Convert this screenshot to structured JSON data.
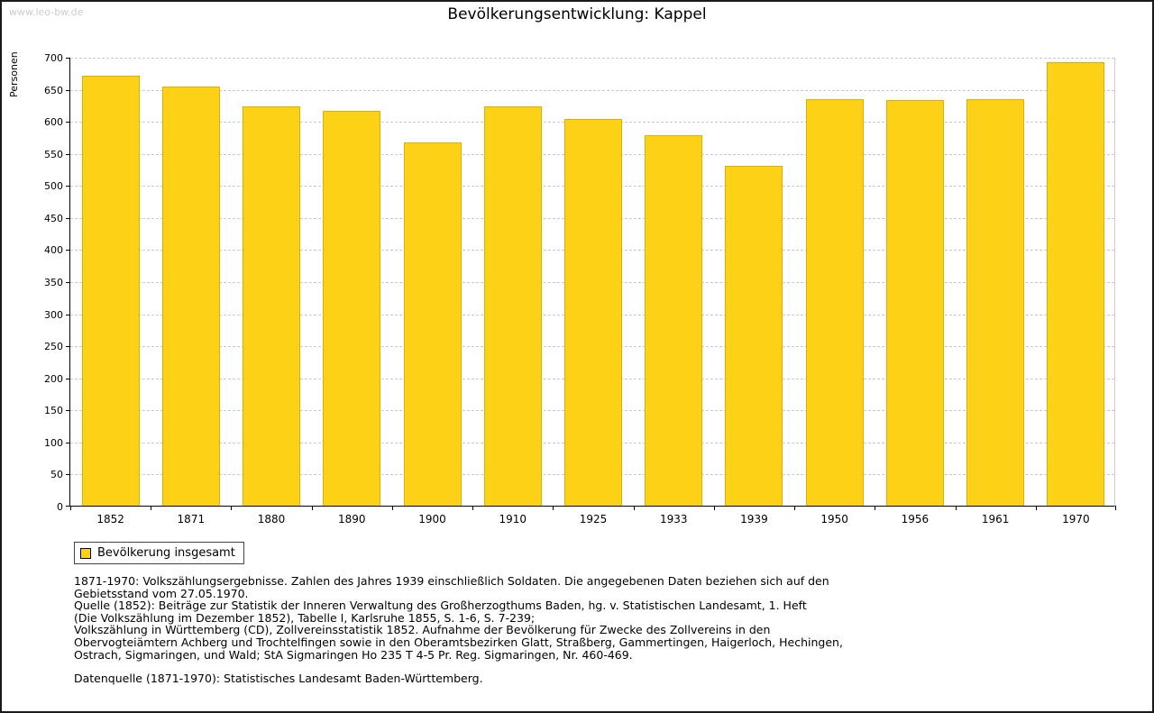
{
  "watermark": "www.leo-bw.de",
  "title": "Bevölkerungsentwicklung: Kappel",
  "chart_data": {
    "type": "bar",
    "title": "Bevölkerungsentwicklung: Kappel",
    "categories": [
      "1852",
      "1871",
      "1880",
      "1890",
      "1900",
      "1910",
      "1925",
      "1933",
      "1939",
      "1950",
      "1956",
      "1961",
      "1970"
    ],
    "values": [
      670,
      653,
      623,
      616,
      566,
      623,
      603,
      578,
      530,
      634,
      632,
      634,
      692
    ],
    "xlabel": "",
    "ylabel": "Personen",
    "ylim": [
      0,
      700
    ],
    "ytick_step": 50,
    "grid": true,
    "bar_color": "#FCD116",
    "bar_border_color": "#DFAE00",
    "legend_position": "bottom-left",
    "legend_entries": [
      "Bevölkerung insgesamt"
    ]
  },
  "legend": {
    "label": "Bevölkerung insgesamt"
  },
  "footnotes": {
    "lines": [
      "1871-1970: Volkszählungsergebnisse. Zahlen des Jahres 1939 einschließlich Soldaten. Die angegebenen Daten beziehen sich auf den",
      "Gebietsstand vom 27.05.1970.",
      "Quelle (1852): Beiträge zur Statistik der Inneren Verwaltung des Großherzogthums Baden, hg. v. Statistischen Landesamt, 1. Heft",
      "(Die Volkszählung im Dezember 1852), Tabelle I, Karlsruhe 1855, S. 1-6, S. 7-239;",
      "Volkszählung in Württemberg (CD), Zollvereinsstatistik 1852. Aufnahme der Bevölkerung für Zwecke des Zollvereins in den",
      "Obervogteiämtern Achberg und Trochtelfingen sowie in den Oberamtsbezirken Glatt, Straßberg, Gammertingen, Haigerloch, Hechingen,",
      "Ostrach, Sigmaringen, und Wald; StA Sigmaringen Ho 235 T 4-5 Pr. Reg. Sigmaringen, Nr. 460-469."
    ],
    "datasource": "Datenquelle (1871-1970): Statistisches Landesamt Baden-Württemberg."
  }
}
